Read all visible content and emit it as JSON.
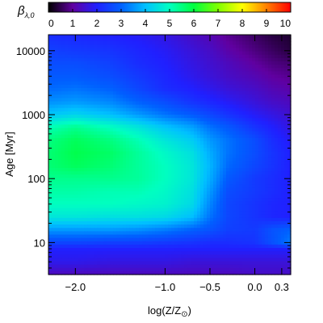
{
  "chart_data": {
    "type": "heatmap",
    "colorbar": {
      "label": "β",
      "label_sub": "λ,0",
      "ticks": [
        "0",
        "1",
        "2",
        "3",
        "4",
        "5",
        "6",
        "7",
        "8",
        "9",
        "10"
      ],
      "range": [
        0,
        10
      ],
      "colormap": [
        "#000000",
        "#6000a0",
        "#2020ff",
        "#0060ff",
        "#00c0ff",
        "#00ffc0",
        "#00ff40",
        "#80ff00",
        "#ffff00",
        "#ff8000",
        "#ff0000"
      ]
    },
    "xlabel": "log(Z/Z",
    "xlabel_sun": "⊙",
    "xlabel_close": ")",
    "ylabel": "Age [Myr]",
    "x_ticks": [
      {
        "value": -2.0,
        "label": "−2.0"
      },
      {
        "value": -1.0,
        "label": "−1.0"
      },
      {
        "value": -0.5,
        "label": "−0.5"
      },
      {
        "value": 0.0,
        "label": "0.0"
      },
      {
        "value": 0.3,
        "label": "0.3"
      }
    ],
    "y_ticks": [
      {
        "value": 10,
        "label": "10"
      },
      {
        "value": 100,
        "label": "100"
      },
      {
        "value": 1000,
        "label": "1000"
      },
      {
        "value": 10000,
        "label": "10000"
      }
    ],
    "xlim": [
      -2.3,
      0.4
    ],
    "ylim_log10": [
      0.5,
      4.25
    ],
    "y_scale": "log",
    "value_grid": {
      "x": [
        -2.3,
        -2.0,
        -1.6,
        -1.3,
        -1.0,
        -0.7,
        -0.5,
        -0.3,
        0.0,
        0.2,
        0.4
      ],
      "log_age": [
        0.5,
        0.7,
        0.9,
        1.0,
        1.2,
        1.4,
        1.6,
        1.8,
        2.0,
        2.2,
        2.4,
        2.6,
        2.8,
        3.0,
        3.2,
        3.4,
        3.6,
        3.8,
        4.0,
        4.25
      ],
      "z": [
        [
          1.3,
          1.3,
          1.3,
          1.3,
          1.3,
          1.3,
          1.3,
          1.3,
          1.4,
          1.4,
          1.4
        ],
        [
          1.8,
          1.8,
          1.7,
          1.7,
          1.7,
          1.6,
          1.6,
          1.6,
          1.6,
          1.6,
          1.6
        ],
        [
          2.0,
          2.0,
          2.0,
          2.0,
          2.0,
          2.0,
          2.0,
          2.0,
          2.0,
          2.0,
          2.0
        ],
        [
          2.6,
          2.6,
          2.5,
          2.5,
          2.4,
          2.3,
          2.2,
          2.2,
          2.3,
          2.8,
          3.3
        ],
        [
          3.6,
          3.6,
          3.6,
          3.5,
          3.3,
          3.0,
          2.8,
          2.5,
          2.4,
          2.8,
          3.0
        ],
        [
          4.6,
          4.6,
          4.5,
          4.5,
          4.4,
          4.0,
          3.2,
          2.6,
          2.3,
          2.1,
          2.0
        ],
        [
          5.0,
          5.0,
          5.0,
          4.9,
          4.8,
          4.4,
          3.4,
          2.6,
          2.3,
          2.1,
          2.0
        ],
        [
          5.2,
          5.2,
          5.1,
          5.1,
          4.9,
          4.5,
          3.6,
          2.7,
          2.4,
          2.2,
          2.0
        ],
        [
          5.4,
          5.4,
          5.4,
          5.3,
          5.0,
          4.6,
          3.8,
          2.9,
          2.4,
          2.2,
          2.0
        ],
        [
          5.6,
          5.8,
          5.6,
          5.3,
          5.0,
          4.6,
          3.9,
          3.1,
          2.6,
          2.3,
          2.0
        ],
        [
          5.6,
          5.9,
          5.7,
          5.3,
          4.9,
          4.5,
          3.8,
          3.2,
          2.7,
          2.3,
          2.0
        ],
        [
          5.5,
          5.8,
          5.5,
          5.1,
          4.6,
          4.2,
          3.6,
          3.2,
          2.7,
          2.2,
          1.9
        ],
        [
          5.1,
          5.4,
          5.0,
          4.6,
          4.1,
          3.7,
          3.2,
          2.9,
          2.3,
          2.0,
          1.7
        ],
        [
          4.1,
          4.3,
          4.0,
          3.6,
          3.2,
          2.9,
          2.6,
          2.3,
          1.9,
          1.7,
          1.5
        ],
        [
          3.5,
          3.6,
          3.4,
          3.0,
          2.7,
          2.3,
          2.1,
          1.9,
          1.6,
          1.4,
          1.3
        ],
        [
          3.1,
          3.2,
          3.0,
          2.6,
          2.2,
          2.0,
          1.8,
          1.6,
          1.4,
          1.2,
          1.1
        ],
        [
          2.9,
          2.9,
          2.7,
          2.4,
          2.1,
          1.8,
          1.6,
          1.4,
          1.2,
          1.0,
          0.9
        ],
        [
          2.7,
          2.7,
          2.5,
          2.2,
          2.0,
          1.7,
          1.5,
          1.3,
          1.0,
          0.8,
          0.7
        ],
        [
          2.5,
          2.4,
          2.3,
          2.1,
          1.9,
          1.6,
          1.4,
          1.1,
          0.8,
          0.6,
          0.4
        ],
        [
          2.2,
          2.1,
          2.0,
          1.9,
          1.7,
          1.4,
          1.2,
          0.9,
          0.6,
          0.4,
          0.3
        ]
      ]
    }
  }
}
